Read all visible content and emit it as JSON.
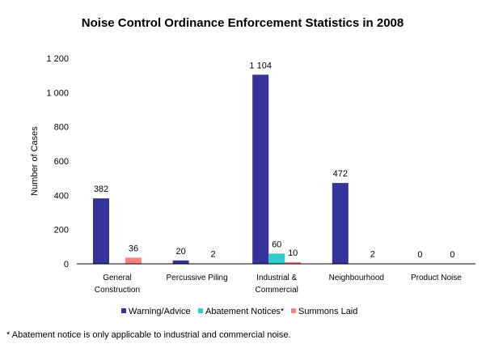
{
  "chart_data": {
    "type": "bar",
    "title": "Noise Control Ordinance Enforcement Statistics in 2008",
    "xlabel": "",
    "ylabel": "Number of Cases",
    "ylim": [
      0,
      1200
    ],
    "yticks": [
      0,
      200,
      400,
      600,
      800,
      1000,
      1200
    ],
    "ytick_labels": [
      "0",
      "200",
      "400",
      "600",
      "800",
      "1 000",
      "1 200"
    ],
    "categories": [
      [
        "General",
        "Construction"
      ],
      [
        "Percussive Piling"
      ],
      [
        "Industrial &",
        "Commercial"
      ],
      [
        "Neighbourhood"
      ],
      [
        "Product Noise"
      ]
    ],
    "series": [
      {
        "name": "Warning/Advice",
        "color": "#333399",
        "values": [
          382,
          20,
          1104,
          472,
          0
        ],
        "labels": [
          "382",
          "20",
          "1 104",
          "472",
          "0"
        ]
      },
      {
        "name": "Abatement Notices*",
        "color": "#33CCCC",
        "values": [
          null,
          null,
          60,
          null,
          null
        ],
        "labels": [
          null,
          null,
          "60",
          null,
          null
        ]
      },
      {
        "name": "Summons Laid",
        "color": "#FF8080",
        "values": [
          36,
          2,
          10,
          2,
          0
        ],
        "labels": [
          "36",
          "2",
          "10",
          "2",
          "0"
        ]
      }
    ],
    "grid": false,
    "legend": "bottom",
    "footnote": "* Abatement notice is only applicable to industrial and commercial noise."
  }
}
